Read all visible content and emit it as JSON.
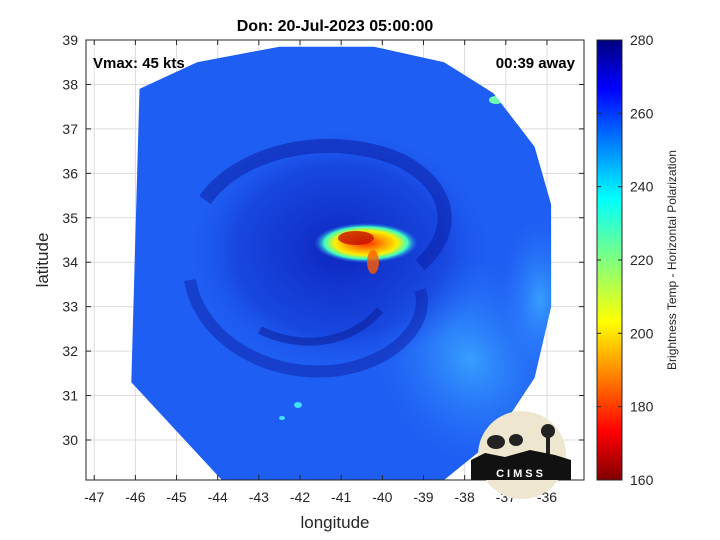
{
  "chart_data": {
    "type": "heatmap",
    "title": "Don: 20-Jul-2023 05:00:00",
    "xlabel": "longitude",
    "ylabel": "latitude",
    "xlim": [
      -47.2,
      -35.1
    ],
    "ylim": [
      29.1,
      39
    ],
    "xticks": [
      "-47",
      "-46",
      "-45",
      "-44",
      "-43",
      "-42",
      "-41",
      "-40",
      "-39",
      "-38",
      "-37",
      "-36"
    ],
    "yticks": [
      "30",
      "31",
      "32",
      "33",
      "34",
      "35",
      "36",
      "37",
      "38",
      "39"
    ],
    "grid": true,
    "annotations": {
      "vmax": "Vmax: 45 kts",
      "away": "00:39 away"
    },
    "storm_center": {
      "lon": -40.9,
      "lat": 34.1
    },
    "swath_polygon": [
      [
        -46.1,
        31.3
      ],
      [
        -45.9,
        37.9
      ],
      [
        -44.5,
        38.5
      ],
      [
        -42.5,
        38.85
      ],
      [
        -40.2,
        38.85
      ],
      [
        -38.5,
        38.5
      ],
      [
        -37.3,
        37.8
      ],
      [
        -36.3,
        36.6
      ],
      [
        -35.9,
        35.3
      ],
      [
        -35.9,
        33.0
      ],
      [
        -36.3,
        31.4
      ],
      [
        -37.3,
        30.0
      ],
      [
        -38.5,
        29.1
      ],
      [
        -43.9,
        29.1
      ]
    ],
    "colorbar": {
      "label": "Brightness Temp - Horizontal Polarization",
      "min": 160,
      "max": 280,
      "ticks": [
        "160",
        "180",
        "200",
        "220",
        "240",
        "260",
        "280"
      ],
      "colormap": "jet"
    },
    "logo": "CIMSS"
  }
}
